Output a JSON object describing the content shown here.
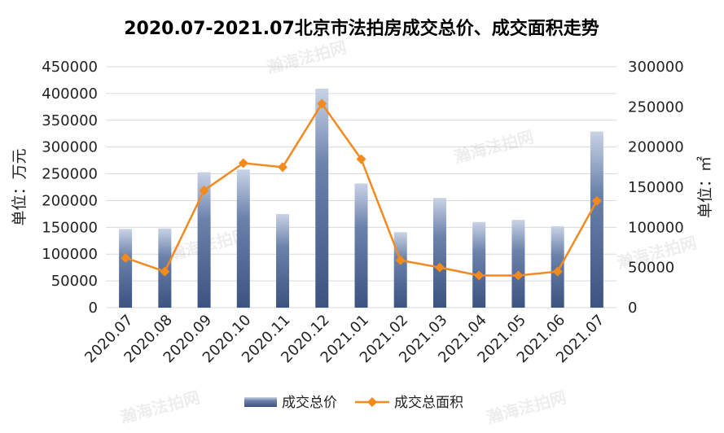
{
  "chart_data": {
    "type": "bar",
    "title": "2020.07-2021.07北京市法拍房成交总价、成交面积走势",
    "categories": [
      "2020.07",
      "2020.08",
      "2020.09",
      "2020.10",
      "2020.11",
      "2020.12",
      "2021.01",
      "2021.02",
      "2021.03",
      "2021.04",
      "2021.05",
      "2021.06",
      "2021.07"
    ],
    "series": [
      {
        "name": "成交总价",
        "type": "bar",
        "axis": "left",
        "color": "#4a6490",
        "values": [
          147000,
          148000,
          253000,
          258000,
          175000,
          409000,
          232000,
          141000,
          205000,
          160000,
          164000,
          152000,
          329000
        ]
      },
      {
        "name": "成交总面积",
        "type": "line",
        "axis": "right",
        "color": "#f28a1e",
        "values": [
          62000,
          45000,
          146000,
          180000,
          175000,
          254000,
          185000,
          59000,
          50000,
          40000,
          40000,
          45000,
          133000
        ]
      }
    ],
    "ylabel_left": "单位：万元",
    "ylabel_right": "单位：㎡",
    "ylim_left": [
      0,
      450000
    ],
    "ylim_right": [
      0,
      300000
    ],
    "yticks_left": [
      "0",
      "50000",
      "100000",
      "150000",
      "200000",
      "250000",
      "300000",
      "350000",
      "400000",
      "450000"
    ],
    "yticks_right": [
      "0",
      "50000",
      "100000",
      "150000",
      "200000",
      "250000",
      "300000"
    ],
    "grid": true,
    "legend_position": "bottom"
  },
  "watermark": "瀚海法拍网",
  "watermark_url": "www.fapai.cn"
}
